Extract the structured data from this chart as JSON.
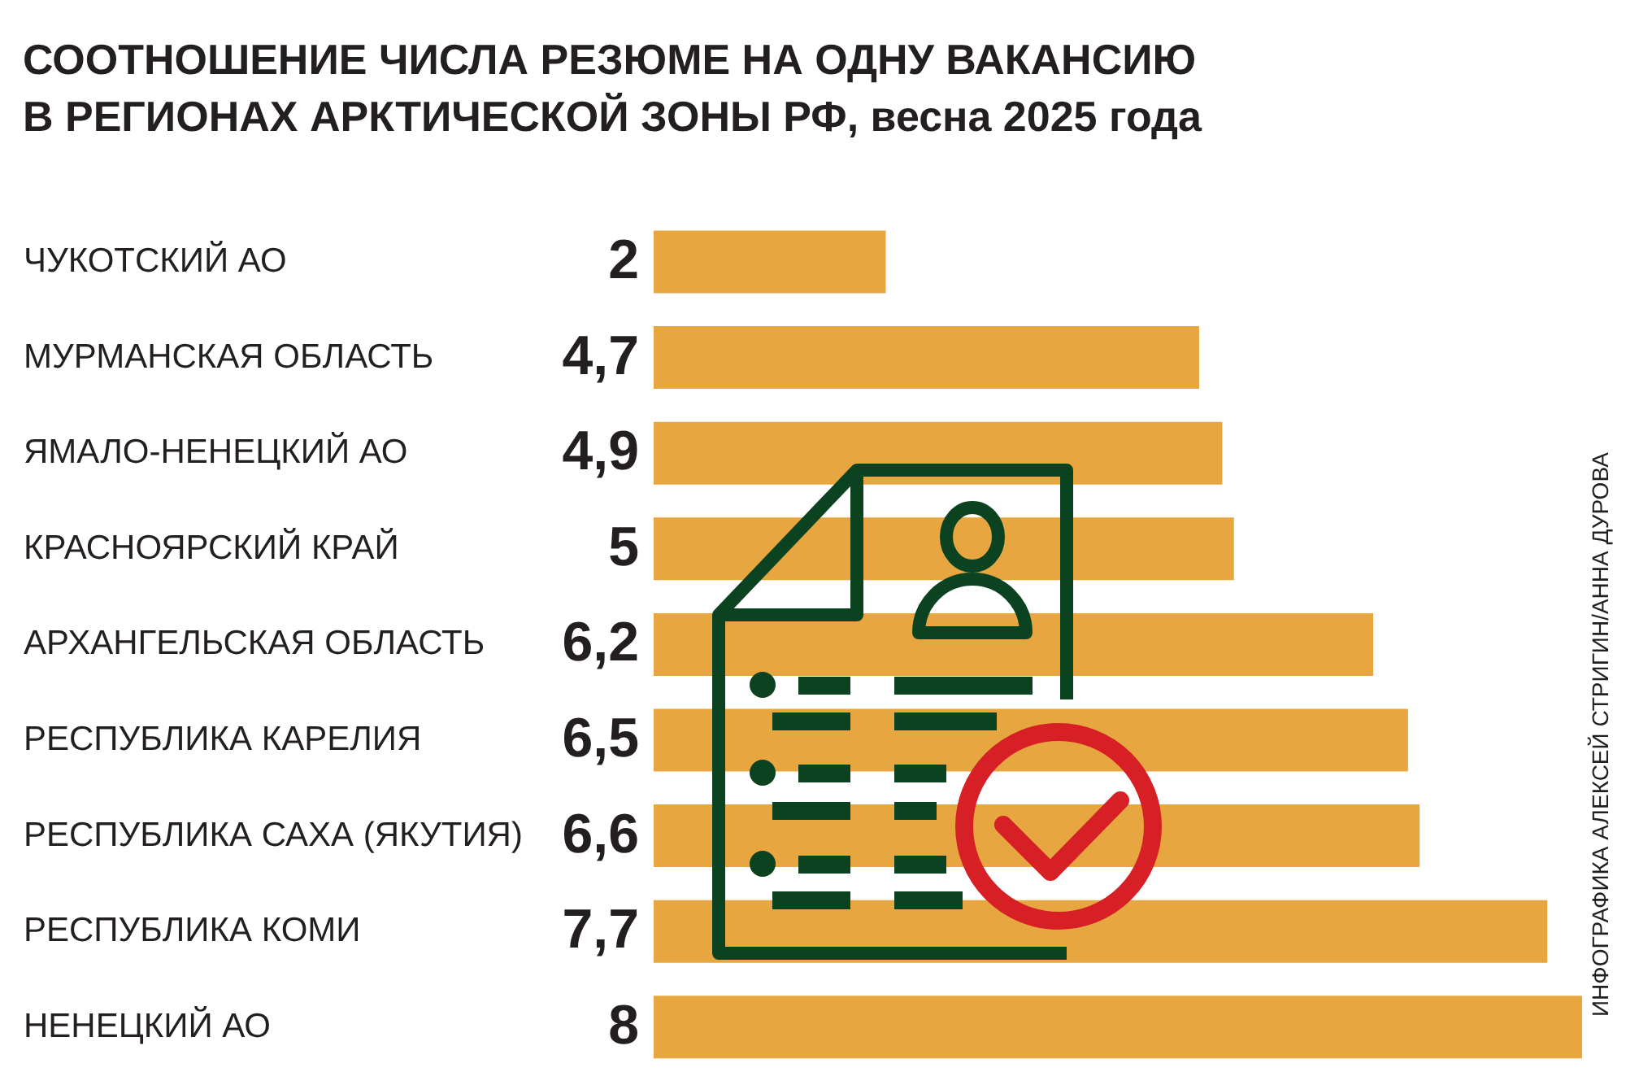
{
  "chart_data": {
    "type": "bar",
    "orientation": "horizontal",
    "title": "СООТНОШЕНИЕ ЧИСЛА РЕЗЮМЕ НА ОДНУ ВАКАНСИЮ\nВ РЕГИОНАХ АРКТИЧЕСКОЙ ЗОНЫ РФ, весна 2025 года",
    "categories": [
      "ЧУКОТСКИЙ АО",
      "МУРМАНСКАЯ ОБЛАСТЬ",
      "ЯМАЛО-НЕНЕЦКИЙ АО",
      "КРАСНОЯРСКИЙ КРАЙ",
      "АРХАНГЕЛЬСКАЯ ОБЛАСТЬ",
      "РЕСПУБЛИКА КАРЕЛИЯ",
      "РЕСПУБЛИКА САХА (ЯКУТИЯ)",
      "РЕСПУБЛИКА КОМИ",
      "НЕНЕЦКИЙ АО"
    ],
    "values": [
      2,
      4.7,
      4.9,
      5,
      6.2,
      6.5,
      6.6,
      7.7,
      8
    ],
    "value_labels": [
      "2",
      "4,7",
      "4,9",
      "5",
      "6,2",
      "6,5",
      "6,6",
      "7,7",
      "8"
    ],
    "color": "#e8a640",
    "annotations": [
      "ИНФОГРАФИКА АЛЕКСЕЙ СТРИГИН/АННА ДУРОВА"
    ]
  }
}
